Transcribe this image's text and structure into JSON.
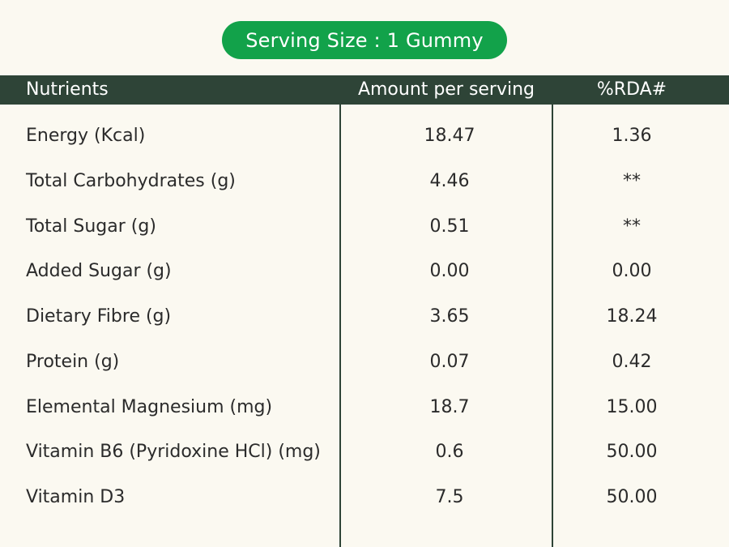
{
  "serving_size": "Serving Size : 1 Gummy",
  "header": {
    "nutrients": "Nutrients",
    "amount": "Amount per serving",
    "rda": "%RDA#"
  },
  "rows": [
    {
      "name": "Energy (Kcal)",
      "amount": "18.47",
      "rda": "1.36"
    },
    {
      "name": "Total Carbohydrates (g)",
      "amount": "4.46",
      "rda": "**"
    },
    {
      "name": "Total Sugar (g)",
      "amount": "0.51",
      "rda": "**"
    },
    {
      "name": "Added Sugar (g)",
      "amount": "0.00",
      "rda": "0.00"
    },
    {
      "name": "Dietary Fibre (g)",
      "amount": "3.65",
      "rda": "18.24"
    },
    {
      "name": "Protein (g)",
      "amount": "0.07",
      "rda": "0.42"
    },
    {
      "name": "Elemental Magnesium (mg)",
      "amount": "18.7",
      "rda": "15.00"
    },
    {
      "name": "Vitamin B6 (Pyridoxine HCl) (mg)",
      "amount": "0.6",
      "rda": "50.00"
    },
    {
      "name": "Vitamin D3",
      "amount": "7.5",
      "rda": "50.00"
    }
  ],
  "colors": {
    "background": "#fbf9f1",
    "pill": "#12a24a",
    "header": "#2e4437"
  }
}
